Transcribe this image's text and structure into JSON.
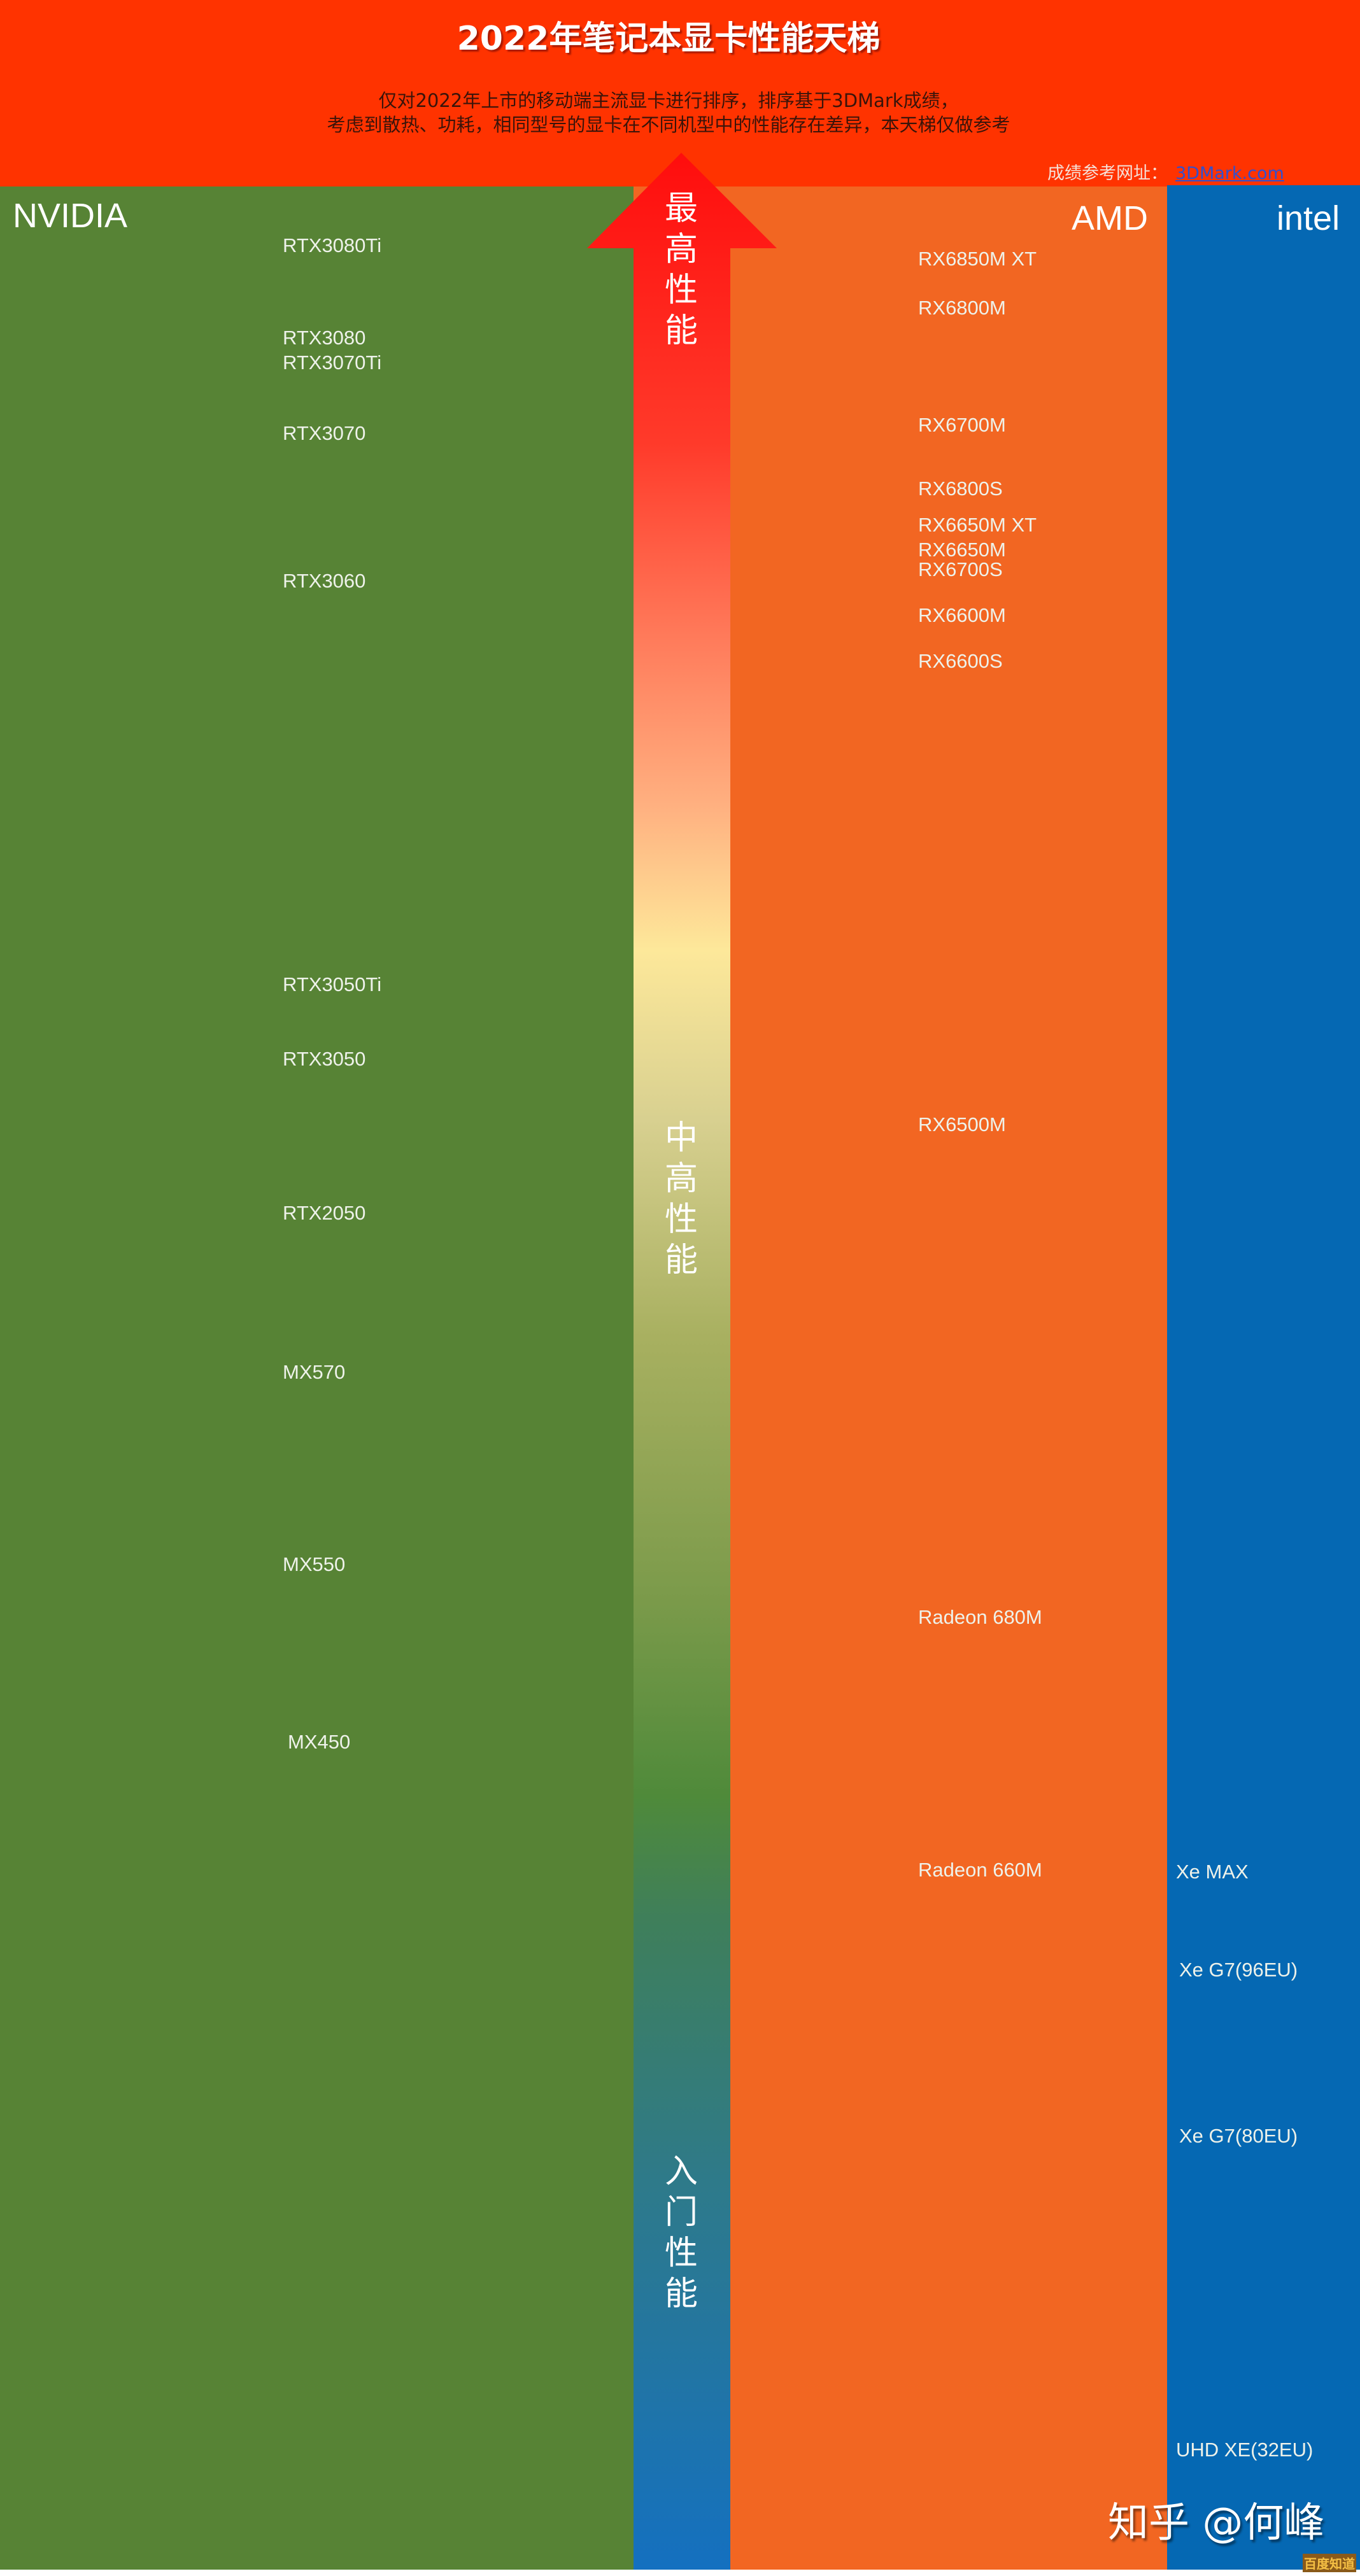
{
  "header": {
    "title": "2022年笔记本显卡性能天梯",
    "subtitle_lines": [
      "仅对2022年上市的移动端主流显卡进行排序，排序基于3DMark成绩，",
      "考虑到散热、功耗，相同型号的显卡在不同机型中的性能存在差异，本天梯仅做参考"
    ],
    "source_label": "成绩参考网址：",
    "source_link": "3DMark.com"
  },
  "colors": {
    "header": "#ff3300",
    "nvidia": "#578335",
    "amd": "#f26622",
    "intel": "#0568b3",
    "arrow_top": "#ff0d0d",
    "arrow_bottom": "#1470c0"
  },
  "arrow": {
    "top_label": "最高性能",
    "mid_label": "中高性能",
    "bottom_label": "入门性能",
    "icon": "arrow-up-icon"
  },
  "columns": {
    "nvidia": {
      "name": "NVIDIA",
      "gpus": [
        "RTX3080Ti",
        "RTX3080",
        "RTX3070Ti",
        "RTX3070",
        "RTX3060",
        "RTX3050Ti",
        "RTX3050",
        "RTX2050",
        "MX570",
        "MX550",
        "MX450"
      ]
    },
    "amd": {
      "name": "AMD",
      "gpus": [
        "RX6850M XT",
        "RX6800M",
        "RX6700M",
        "RX6800S",
        "RX6650M XT",
        "RX6650M",
        "RX6700S",
        "RX6600M",
        "RX6600S",
        "RX6500M",
        "Radeon 680M",
        "Radeon 660M"
      ]
    },
    "intel": {
      "name": "intel",
      "gpus": [
        "Xe MAX",
        "Xe G7(96EU)",
        "Xe G7(80EU)",
        "UHD XE(32EU)"
      ]
    }
  },
  "watermark": {
    "text": "知乎 @何峰",
    "badge": "百度知道"
  }
}
